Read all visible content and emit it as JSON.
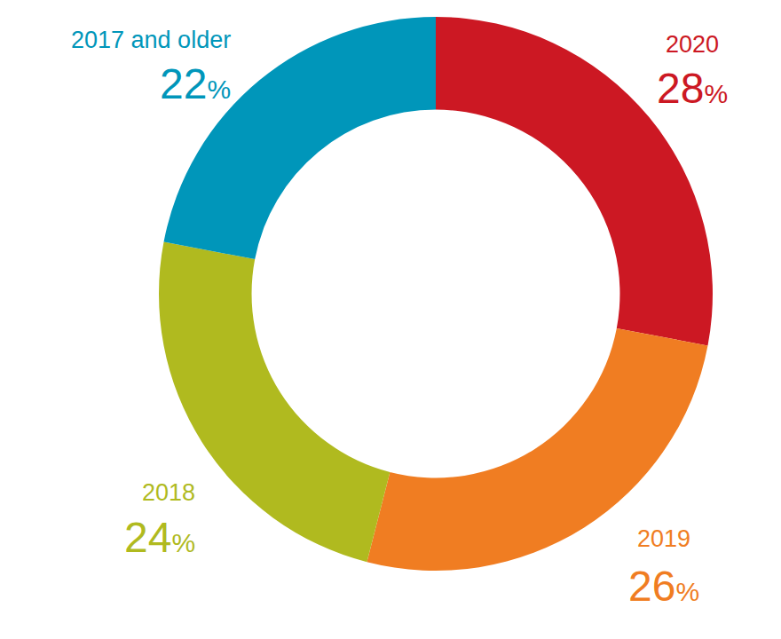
{
  "chart_data": {
    "type": "pie",
    "categories": [
      "2020",
      "2019",
      "2018",
      "2017 and older"
    ],
    "values": [
      28,
      26,
      24,
      22
    ],
    "value_labels": [
      "28%",
      "26%",
      "24%",
      "22%"
    ],
    "colors": [
      "#cc1823",
      "#f07d22",
      "#b0ba1f",
      "#0096ba"
    ],
    "data_labels": true
  }
}
